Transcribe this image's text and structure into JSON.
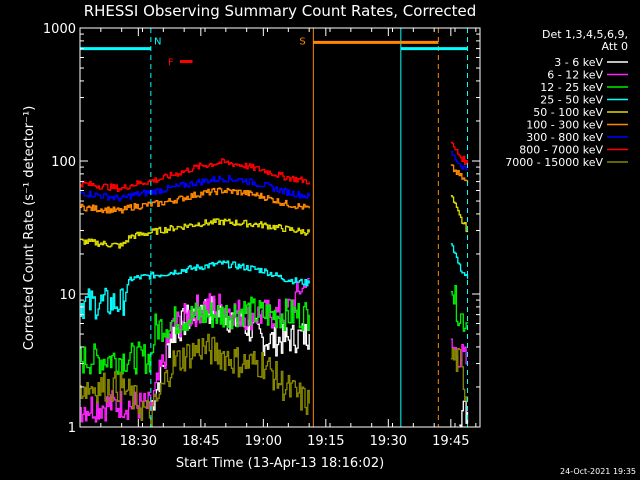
{
  "chart_data": {
    "type": "line",
    "title": "RHESSI Observing Summary Count Rates, Corrected",
    "xlabel": "Start Time (13-Apr-13 18:16:02)",
    "ylabel": "Corrected Count Rate (s⁻¹ detector⁻¹)",
    "yscale": "log",
    "ylim": [
      1,
      1000
    ],
    "xlim": [
      "18:16",
      "19:52"
    ],
    "x_ticks": [
      "18:30",
      "18:45",
      "19:00",
      "19:15",
      "19:30",
      "19:45"
    ],
    "y_ticks": [
      "1",
      "10",
      "100",
      "1000"
    ],
    "legend_header": [
      "Det 1,3,4,5,6,9,",
      "Att 0"
    ],
    "legend_position": "right",
    "footer_date": "24-Oct-2021 19:35",
    "series": [
      {
        "name": "3 - 6 keV",
        "color": "#ffffff",
        "segments": [
          [
            [
              "18:33",
              1.4
            ],
            [
              "18:38",
              5
            ],
            [
              "18:45",
              8
            ],
            [
              "18:50",
              7
            ],
            [
              "18:55",
              6
            ],
            [
              "19:00",
              4.5
            ],
            [
              "19:05",
              4.5
            ],
            [
              "19:11",
              5
            ]
          ],
          [
            [
              "19:47",
              1.3
            ],
            [
              "19:49",
              1.3
            ]
          ]
        ]
      },
      {
        "name": "6 - 12 keV",
        "color": "#ff22ff",
        "segments": [
          [
            [
              "18:16",
              1.4
            ],
            [
              "18:26",
              1.5
            ],
            [
              "18:33",
              1.4
            ],
            [
              "18:38",
              5.5
            ],
            [
              "18:45",
              8
            ],
            [
              "18:50",
              8
            ],
            [
              "18:55",
              7
            ],
            [
              "19:05",
              7
            ],
            [
              "19:11",
              13
            ]
          ],
          [
            [
              "19:45",
              4
            ],
            [
              "19:49",
              3
            ]
          ]
        ]
      },
      {
        "name": "12 - 25 keV",
        "color": "#00ee00",
        "segments": [
          [
            [
              "18:16",
              3.2
            ],
            [
              "18:26",
              3.3
            ],
            [
              "18:33",
              3.3
            ],
            [
              "18:34",
              5.5
            ],
            [
              "18:40",
              6.5
            ],
            [
              "18:45",
              7
            ],
            [
              "18:50",
              7
            ],
            [
              "18:55",
              7.5
            ],
            [
              "19:00",
              7
            ],
            [
              "19:05",
              7
            ],
            [
              "19:11",
              7
            ]
          ],
          [
            [
              "19:45",
              11
            ],
            [
              "19:47",
              7
            ],
            [
              "19:49",
              6
            ]
          ]
        ]
      },
      {
        "name": "25 - 50 keV",
        "color": "#00ffff",
        "segments": [
          [
            [
              "18:16",
              8.5
            ],
            [
              "18:26",
              8.5
            ],
            [
              "18:28",
              13
            ],
            [
              "18:35",
              14
            ],
            [
              "18:40",
              15
            ],
            [
              "18:45",
              16
            ],
            [
              "18:50",
              17
            ],
            [
              "18:55",
              16
            ],
            [
              "19:00",
              15
            ],
            [
              "19:05",
              13
            ],
            [
              "19:11",
              12
            ]
          ],
          [
            [
              "19:45",
              25
            ],
            [
              "19:47",
              16
            ],
            [
              "19:49",
              13
            ]
          ]
        ]
      },
      {
        "name": "50 - 100 keV",
        "color": "#dddd00",
        "segments": [
          [
            [
              "18:16",
              25
            ],
            [
              "18:26",
              23
            ],
            [
              "18:28",
              27
            ],
            [
              "18:35",
              30
            ],
            [
              "18:40",
              32
            ],
            [
              "18:45",
              34
            ],
            [
              "18:50",
              35
            ],
            [
              "18:55",
              34
            ],
            [
              "19:00",
              33
            ],
            [
              "19:05",
              31
            ],
            [
              "19:11",
              29
            ]
          ],
          [
            [
              "19:45",
              55
            ],
            [
              "19:47",
              38
            ],
            [
              "19:49",
              30
            ]
          ]
        ]
      },
      {
        "name": "100 - 300 keV",
        "color": "#ff8800",
        "segments": [
          [
            [
              "18:16",
              45
            ],
            [
              "18:26",
              42
            ],
            [
              "18:28",
              45
            ],
            [
              "18:35",
              48
            ],
            [
              "18:40",
              52
            ],
            [
              "18:45",
              57
            ],
            [
              "18:50",
              60
            ],
            [
              "18:55",
              58
            ],
            [
              "19:00",
              54
            ],
            [
              "19:05",
              48
            ],
            [
              "19:11",
              44
            ]
          ],
          [
            [
              "19:45",
              90
            ],
            [
              "19:47",
              78
            ],
            [
              "19:49",
              68
            ]
          ]
        ]
      },
      {
        "name": "300 - 800 keV",
        "color": "#0000ff",
        "segments": [
          [
            [
              "18:16",
              58
            ],
            [
              "18:26",
              52
            ],
            [
              "18:28",
              55
            ],
            [
              "18:35",
              60
            ],
            [
              "18:40",
              65
            ],
            [
              "18:45",
              70
            ],
            [
              "18:50",
              74
            ],
            [
              "18:55",
              72
            ],
            [
              "19:00",
              66
            ],
            [
              "19:05",
              59
            ],
            [
              "19:11",
              54
            ]
          ],
          [
            [
              "19:45",
              115
            ],
            [
              "19:47",
              95
            ],
            [
              "19:49",
              85
            ]
          ]
        ]
      },
      {
        "name": "800 - 7000 keV",
        "color": "#ff0000",
        "segments": [
          [
            [
              "18:16",
              68
            ],
            [
              "18:26",
              62
            ],
            [
              "18:28",
              66
            ],
            [
              "18:35",
              73
            ],
            [
              "18:40",
              82
            ],
            [
              "18:45",
              92
            ],
            [
              "18:50",
              98
            ],
            [
              "18:55",
              93
            ],
            [
              "19:00",
              85
            ],
            [
              "19:05",
              76
            ],
            [
              "19:11",
              70
            ]
          ],
          [
            [
              "19:45",
              135
            ],
            [
              "19:47",
              110
            ],
            [
              "19:49",
              95
            ]
          ]
        ]
      },
      {
        "name": "7000 - 15000 keV",
        "color": "#888800",
        "segments": [
          [
            [
              "18:16",
              2
            ],
            [
              "18:26",
              2
            ],
            [
              "18:33",
              1.2
            ],
            [
              "18:38",
              3
            ],
            [
              "18:45",
              4
            ],
            [
              "18:50",
              3.5
            ],
            [
              "18:55",
              3
            ],
            [
              "19:00",
              3
            ],
            [
              "19:05",
              2
            ],
            [
              "19:11",
              1.5
            ]
          ],
          [
            [
              "19:45",
              3.5
            ],
            [
              "19:47",
              3
            ],
            [
              "19:49",
              1.6
            ]
          ]
        ]
      }
    ],
    "annotations": {
      "bars": [
        {
          "label": "N",
          "color": "#00ffff",
          "from": "18:16",
          "to": "18:33",
          "level": 700
        },
        {
          "label": "F",
          "color": "#ff0000",
          "from": "18:40",
          "to": "18:43",
          "level": 560
        },
        {
          "label": "S",
          "color": "#ff8800",
          "from": "19:12",
          "to": "19:42",
          "level": 780
        },
        {
          "label": "",
          "color": "#00ffff",
          "from": "19:33",
          "to": "19:49",
          "level": 700
        }
      ],
      "vlines": [
        {
          "time": "18:33",
          "color": "#00ffff",
          "style": "dashed"
        },
        {
          "time": "19:12",
          "color": "#ff8800",
          "style": "solid"
        },
        {
          "time": "19:33",
          "color": "#00ffff",
          "style": "solid"
        },
        {
          "time": "19:42",
          "color": "#ff8800",
          "style": "dashed"
        },
        {
          "time": "19:49",
          "color": "#00ffff",
          "style": "dashed"
        }
      ]
    }
  }
}
